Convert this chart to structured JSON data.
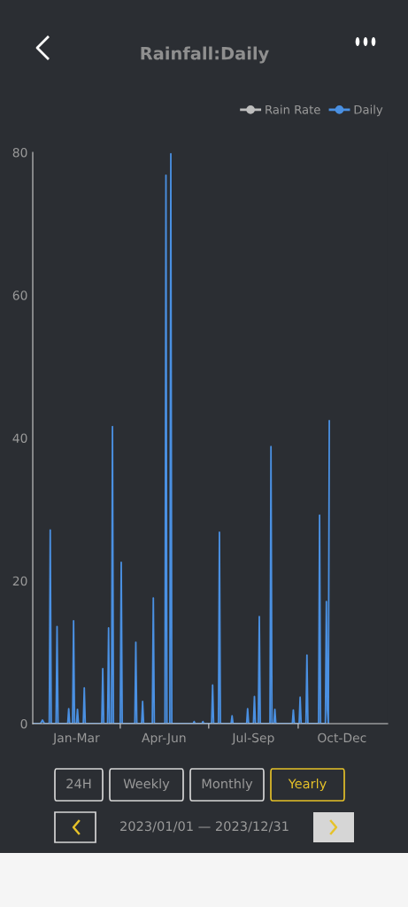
{
  "chart_data": {
    "type": "line",
    "title": "Rainfall:Daily",
    "xlim": [
      "2023-01-01",
      "2024-01-01"
    ],
    "ylim": [
      0,
      80
    ],
    "yticks": [
      0,
      20,
      40,
      60,
      80
    ],
    "xticks": [
      {
        "value": "2023-02-15",
        "label": "Jan-Mar"
      },
      {
        "value": "2023-04-01",
        "label": null
      },
      {
        "value": "2023-05-16",
        "label": "Apr-Jun"
      },
      {
        "value": "2023-07-01",
        "label": null
      },
      {
        "value": "2023-08-16",
        "label": "Jul-Sep"
      },
      {
        "value": "2023-10-01",
        "label": null
      },
      {
        "value": "2023-11-15",
        "label": "Oct-Dec"
      }
    ],
    "legend": "top right",
    "grid": false,
    "marker": "none",
    "line_style": "solid",
    "series": [
      {
        "name": "Rain Rate",
        "color": "#bdbdbd"
      },
      {
        "name": "Daily",
        "color": "#4a90e2",
        "x": [
          "2023-01-01",
          "2023-01-09",
          "2023-01-11",
          "2023-01-13",
          "2023-01-18",
          "2023-01-19",
          "2023-01-20",
          "2023-01-25",
          "2023-01-26",
          "2023-01-27",
          "2023-02-06",
          "2023-02-07",
          "2023-02-08",
          "2023-02-11",
          "2023-02-12",
          "2023-02-13",
          "2023-02-15",
          "2023-02-16",
          "2023-02-17",
          "2023-02-22",
          "2023-02-23",
          "2023-02-24",
          "2023-03-13",
          "2023-03-14",
          "2023-03-15",
          "2023-03-19",
          "2023-03-20",
          "2023-03-21",
          "2023-03-23",
          "2023-03-24",
          "2023-03-25",
          "2023-04-01",
          "2023-04-02",
          "2023-04-03",
          "2023-04-16",
          "2023-04-17",
          "2023-04-18",
          "2023-04-23",
          "2023-04-24",
          "2023-04-25",
          "2023-05-04",
          "2023-05-05",
          "2023-05-06",
          "2023-05-17",
          "2023-05-18",
          "2023-05-19",
          "2023-05-22",
          "2023-05-23",
          "2023-05-24",
          "2023-06-15",
          "2023-06-16",
          "2023-06-17",
          "2023-06-24",
          "2023-06-25",
          "2023-06-26",
          "2023-07-04",
          "2023-07-05",
          "2023-07-06",
          "2023-07-11",
          "2023-07-12",
          "2023-07-13",
          "2023-07-24",
          "2023-07-25",
          "2023-07-26",
          "2023-08-09",
          "2023-08-10",
          "2023-08-11",
          "2023-08-16",
          "2023-08-17",
          "2023-08-18",
          "2023-08-21",
          "2023-08-22",
          "2023-08-23",
          "2023-09-02",
          "2023-09-03",
          "2023-09-04",
          "2023-09-06",
          "2023-09-07",
          "2023-09-08",
          "2023-09-25",
          "2023-09-26",
          "2023-09-27",
          "2023-10-02",
          "2023-10-03",
          "2023-10-04",
          "2023-10-09",
          "2023-10-10",
          "2023-10-11",
          "2023-10-22",
          "2023-10-23",
          "2023-10-24",
          "2023-10-29",
          "2023-10-30",
          "2023-10-31",
          "2023-11-01",
          "2023-11-02"
        ],
        "values": [
          0,
          0,
          0.5,
          0,
          0,
          27.1,
          0,
          0,
          13.6,
          0,
          0,
          2.1,
          0,
          0,
          14.4,
          0,
          0,
          2.0,
          0,
          0,
          5.0,
          0,
          0,
          7.7,
          0,
          0,
          13.4,
          0,
          0,
          41.6,
          0,
          0,
          22.6,
          0,
          0,
          11.4,
          0,
          0,
          3.1,
          0,
          0,
          17.6,
          0,
          0,
          76.8,
          0,
          0,
          79.8,
          0,
          0,
          0.3,
          0,
          0,
          0.3,
          0,
          0,
          5.4,
          0,
          0,
          26.8,
          0,
          0,
          1.1,
          0,
          0,
          2.1,
          0,
          0,
          3.8,
          0,
          0,
          15.0,
          0,
          0,
          38.8,
          0,
          0,
          2.0,
          0,
          0,
          1.9,
          0,
          0,
          3.7,
          0,
          0,
          9.6,
          0,
          0,
          29.2,
          0,
          0,
          17.1,
          2.0,
          0,
          42.4
        ]
      }
    ],
    "annotations": [
      "24H",
      "Weekly",
      "Monthly",
      "Yearly",
      "2023/01/01 — 2023/12/31"
    ]
  }
}
